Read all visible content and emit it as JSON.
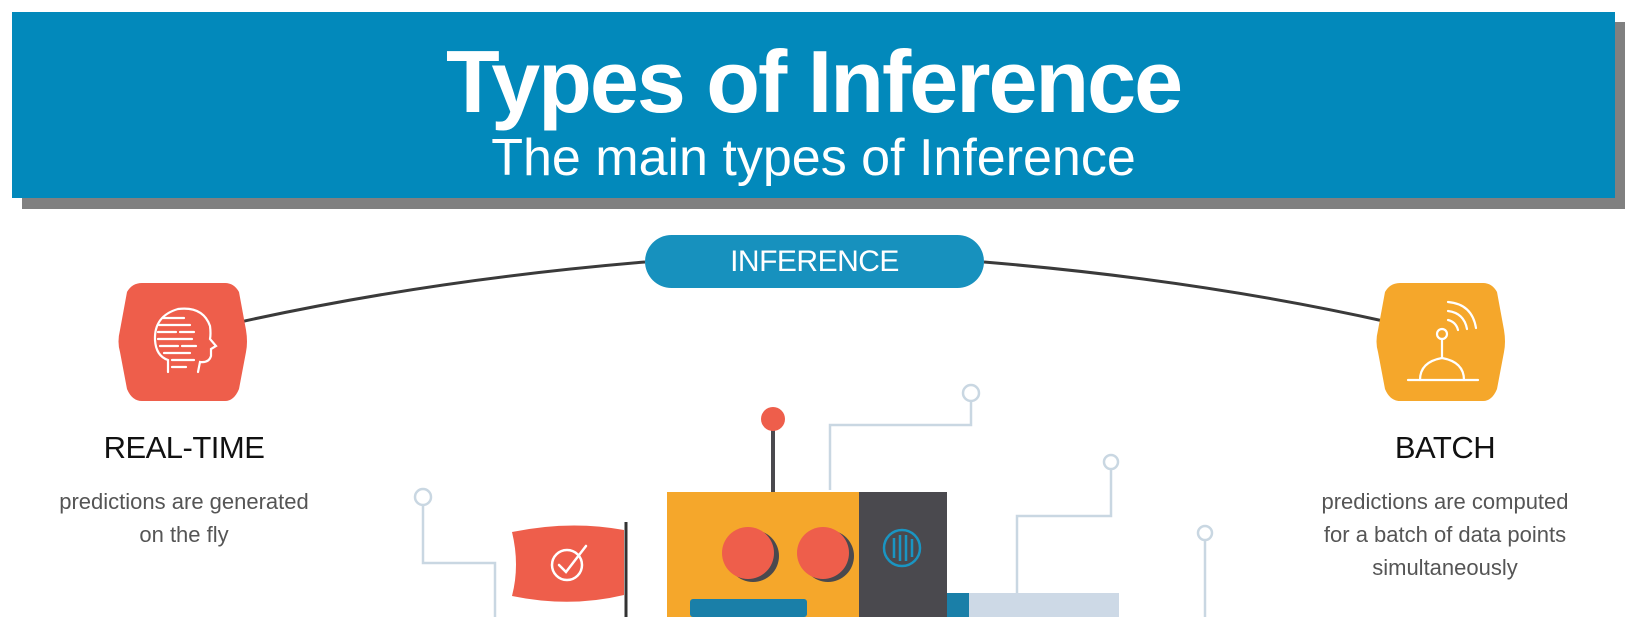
{
  "header": {
    "title": "Types of Inference",
    "subtitle": "The main types of Inference"
  },
  "center_label": "INFERENCE",
  "types": [
    {
      "title": "REAL-TIME",
      "description_lines": [
        "predictions are generated",
        "on the fly"
      ],
      "icon": "human-head-icon",
      "color": "#ee5e4b"
    },
    {
      "title": "BATCH",
      "description_lines": [
        "predictions are computed",
        "for a batch of data points",
        "simultaneously"
      ],
      "icon": "antenna-signal-icon",
      "color": "#f5a72b"
    }
  ],
  "colors": {
    "banner": "#0289bb",
    "banner_shadow": "#808080",
    "pill": "#1791be",
    "arc": "#3a3a3a",
    "circuit_lines": "#c9d7e2",
    "robot_body": "#f5a72b",
    "robot_panel": "#4a494e",
    "robot_accent": "#ee5e4b"
  }
}
